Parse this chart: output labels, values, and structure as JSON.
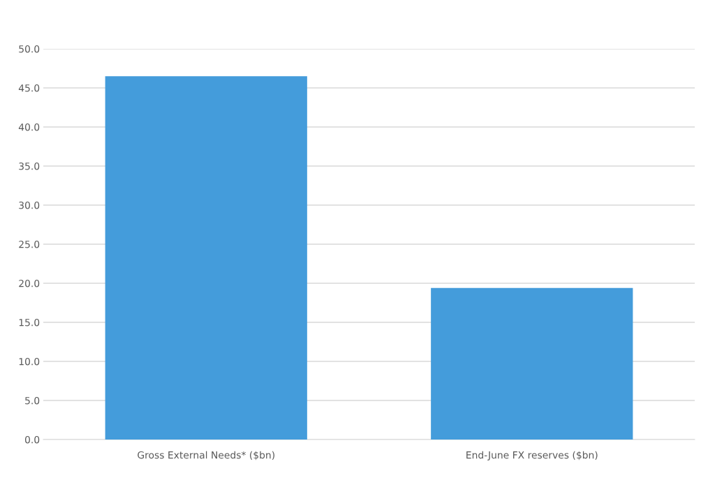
{
  "chart_data": {
    "type": "bar",
    "categories": [
      "Gross External Needs* ($bn)",
      "End-June FX reserves ($bn)"
    ],
    "values": [
      46.5,
      19.4
    ],
    "color": "#449cdb",
    "ylim": [
      0,
      50
    ],
    "yticks": [
      {
        "value": 0,
        "label": "0.0"
      },
      {
        "value": 5,
        "label": "5.0"
      },
      {
        "value": 10,
        "label": "10.0"
      },
      {
        "value": 15,
        "label": "15.0"
      },
      {
        "value": 20,
        "label": "20.0"
      },
      {
        "value": 25,
        "label": "25.0"
      },
      {
        "value": 30,
        "label": "30.0"
      },
      {
        "value": 35,
        "label": "35.0"
      },
      {
        "value": 40,
        "label": "40.0"
      },
      {
        "value": 45,
        "label": "45.0"
      },
      {
        "value": 50,
        "label": "50.0"
      }
    ],
    "grid": "y",
    "legend": false
  }
}
